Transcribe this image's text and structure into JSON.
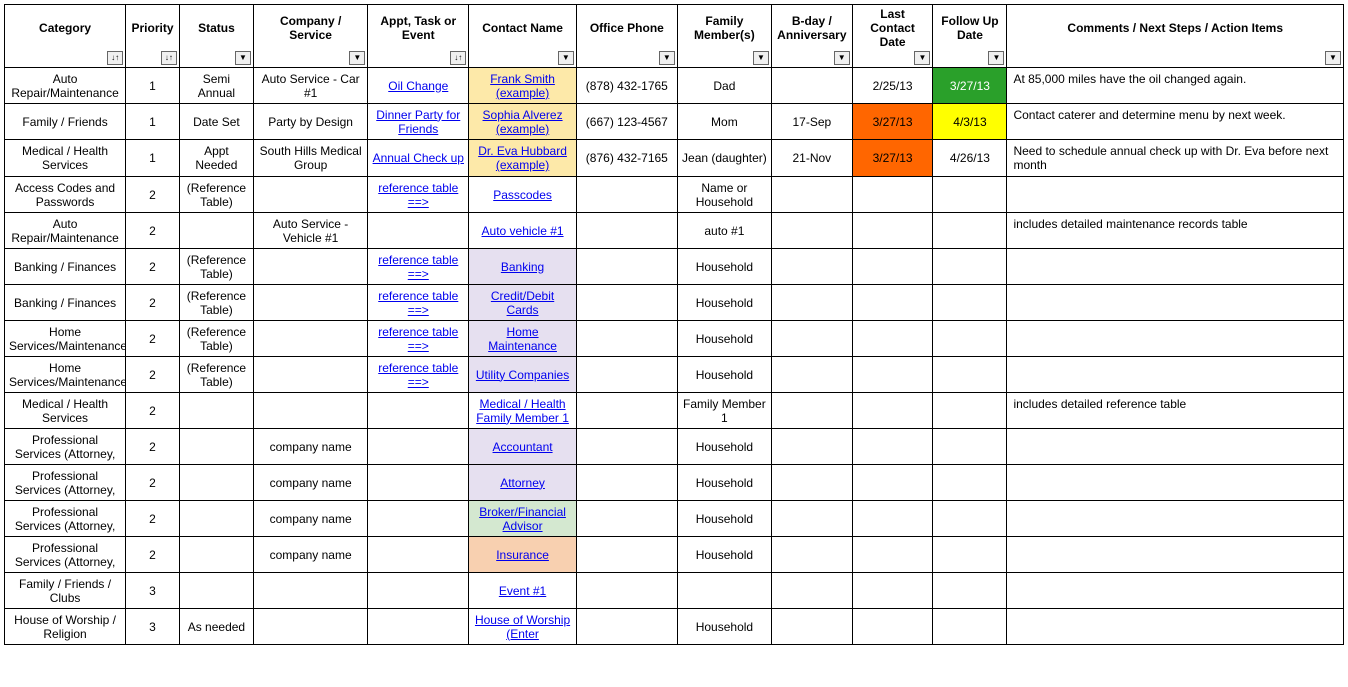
{
  "colors": {
    "cell_yellow_contact": "#fde9a9",
    "cell_purple_contact": "#e6e0f0",
    "cell_green_contact": "#d4e8d0",
    "cell_orange_contact": "#f8d0b0",
    "cell_green_followup": "#2aa02a",
    "cell_green_followup_text": "#ffffff",
    "cell_yellow_followup": "#ffff00",
    "cell_orange_date": "#ff6600",
    "link_color": "#0000ee"
  },
  "columns": [
    {
      "key": "category",
      "label": "Category",
      "filter": "sort"
    },
    {
      "key": "priority",
      "label": "Priority",
      "filter": "sort"
    },
    {
      "key": "status",
      "label": "Status",
      "filter": "filter"
    },
    {
      "key": "company",
      "label": "Company / Service",
      "filter": "filter"
    },
    {
      "key": "appt",
      "label": "Appt, Task or Event",
      "filter": "sort"
    },
    {
      "key": "contact",
      "label": "Contact Name",
      "filter": "filter"
    },
    {
      "key": "phone",
      "label": "Office Phone",
      "filter": "filter"
    },
    {
      "key": "family",
      "label": "Family Member(s)",
      "filter": "filter"
    },
    {
      "key": "bday",
      "label": "B-day / Anniversary",
      "filter": "filter"
    },
    {
      "key": "lastcontact",
      "label": "Last Contact Date",
      "filter": "filter"
    },
    {
      "key": "followup",
      "label": "Follow Up Date",
      "filter": "filter"
    },
    {
      "key": "comments",
      "label": "Comments / Next Steps / Action Items",
      "filter": "filter"
    }
  ],
  "rows": [
    {
      "category": "Auto Repair/Maintenance",
      "priority": "1",
      "status": "Semi Annual",
      "company": "Auto Service - Car #1",
      "appt": {
        "text": "Oil Change",
        "link": true
      },
      "contact": {
        "text": "Frank Smith (example)",
        "link": true,
        "bg": "cell_yellow_contact"
      },
      "phone": "(878) 432-1765",
      "family": "Dad",
      "bday": "",
      "lastcontact": {
        "text": "2/25/13"
      },
      "followup": {
        "text": "3/27/13",
        "bg": "cell_green_followup",
        "fg": "cell_green_followup_text"
      },
      "comments": "At 85,000 miles have the oil changed again."
    },
    {
      "category": "Family / Friends",
      "priority": "1",
      "status": "Date Set",
      "company": "Party by Design",
      "appt": {
        "text": "Dinner Party for Friends",
        "link": true
      },
      "contact": {
        "text": "Sophia Alverez (example)",
        "link": true,
        "bg": "cell_yellow_contact"
      },
      "phone": "(667) 123-4567",
      "family": "Mom",
      "bday": "17-Sep",
      "lastcontact": {
        "text": "3/27/13",
        "bg": "cell_orange_date"
      },
      "followup": {
        "text": "4/3/13",
        "bg": "cell_yellow_followup"
      },
      "comments": "Contact caterer and determine menu by next week."
    },
    {
      "category": "Medical / Health Services",
      "priority": "1",
      "status": "Appt Needed",
      "company": "South Hills Medical Group",
      "appt": {
        "text": "Annual Check up",
        "link": true
      },
      "contact": {
        "text": "Dr. Eva Hubbard (example)",
        "link": true,
        "bg": "cell_yellow_contact"
      },
      "phone": "(876) 432-7165",
      "family": "Jean (daughter)",
      "bday": "21-Nov",
      "lastcontact": {
        "text": "3/27/13",
        "bg": "cell_orange_date"
      },
      "followup": {
        "text": "4/26/13"
      },
      "comments": "Need to schedule annual check up with Dr. Eva before next month"
    },
    {
      "category": "Access Codes and Passwords",
      "priority": "2",
      "status": "(Reference Table)",
      "company": "",
      "appt": {
        "text": "reference table ==>",
        "link": true
      },
      "contact": {
        "text": "Passcodes",
        "link": true
      },
      "phone": "",
      "family": "Name or Household",
      "bday": "",
      "lastcontact": {
        "text": ""
      },
      "followup": {
        "text": ""
      },
      "comments": ""
    },
    {
      "category": "Auto Repair/Maintenance",
      "priority": "2",
      "status": "",
      "company": "Auto Service - Vehicle #1",
      "appt": {
        "text": ""
      },
      "contact": {
        "text": "Auto vehicle #1",
        "link": true
      },
      "phone": "",
      "family": "auto #1",
      "bday": "",
      "lastcontact": {
        "text": ""
      },
      "followup": {
        "text": ""
      },
      "comments": "includes detailed maintenance records table"
    },
    {
      "category": "Banking / Finances",
      "priority": "2",
      "status": "(Reference Table)",
      "company": "",
      "appt": {
        "text": "reference table ==>",
        "link": true
      },
      "contact": {
        "text": "Banking",
        "link": true,
        "bg": "cell_purple_contact"
      },
      "phone": "",
      "family": "Household",
      "bday": "",
      "lastcontact": {
        "text": ""
      },
      "followup": {
        "text": ""
      },
      "comments": ""
    },
    {
      "category": "Banking / Finances",
      "priority": "2",
      "status": "(Reference Table)",
      "company": "",
      "appt": {
        "text": "reference table ==>",
        "link": true
      },
      "contact": {
        "text": "Credit/Debit Cards",
        "link": true,
        "bg": "cell_purple_contact"
      },
      "phone": "",
      "family": "Household",
      "bday": "",
      "lastcontact": {
        "text": ""
      },
      "followup": {
        "text": ""
      },
      "comments": ""
    },
    {
      "category": "Home Services/Maintenance",
      "priority": "2",
      "status": "(Reference Table)",
      "company": "",
      "appt": {
        "text": "reference table ==>",
        "link": true
      },
      "contact": {
        "text": "Home Maintenance",
        "link": true,
        "bg": "cell_purple_contact"
      },
      "phone": "",
      "family": "Household",
      "bday": "",
      "lastcontact": {
        "text": ""
      },
      "followup": {
        "text": ""
      },
      "comments": ""
    },
    {
      "category": "Home Services/Maintenance",
      "priority": "2",
      "status": "(Reference Table)",
      "company": "",
      "appt": {
        "text": "reference table ==>",
        "link": true
      },
      "contact": {
        "text": "Utility Companies",
        "link": true,
        "bg": "cell_purple_contact"
      },
      "phone": "",
      "family": "Household",
      "bday": "",
      "lastcontact": {
        "text": ""
      },
      "followup": {
        "text": ""
      },
      "comments": ""
    },
    {
      "category": "Medical / Health Services",
      "priority": "2",
      "status": "",
      "company": "",
      "appt": {
        "text": ""
      },
      "contact": {
        "text": "Medical / Health Family Member 1",
        "link": true
      },
      "phone": "",
      "family": "Family Member 1",
      "bday": "",
      "lastcontact": {
        "text": ""
      },
      "followup": {
        "text": ""
      },
      "comments": "includes detailed reference table"
    },
    {
      "category": "Professional Services (Attorney,",
      "priority": "2",
      "status": "",
      "company": "company name",
      "appt": {
        "text": ""
      },
      "contact": {
        "text": "Accountant",
        "link": true,
        "bg": "cell_purple_contact"
      },
      "phone": "",
      "family": "Household",
      "bday": "",
      "lastcontact": {
        "text": ""
      },
      "followup": {
        "text": ""
      },
      "comments": ""
    },
    {
      "category": "Professional Services (Attorney,",
      "priority": "2",
      "status": "",
      "company": "company name",
      "appt": {
        "text": ""
      },
      "contact": {
        "text": "Attorney",
        "link": true,
        "bg": "cell_purple_contact"
      },
      "phone": "",
      "family": "Household",
      "bday": "",
      "lastcontact": {
        "text": ""
      },
      "followup": {
        "text": ""
      },
      "comments": ""
    },
    {
      "category": "Professional Services (Attorney,",
      "priority": "2",
      "status": "",
      "company": "company name",
      "appt": {
        "text": ""
      },
      "contact": {
        "text": "Broker/Financial Advisor",
        "link": true,
        "bg": "cell_green_contact"
      },
      "phone": "",
      "family": "Household",
      "bday": "",
      "lastcontact": {
        "text": ""
      },
      "followup": {
        "text": ""
      },
      "comments": ""
    },
    {
      "category": "Professional Services (Attorney,",
      "priority": "2",
      "status": "",
      "company": "company name",
      "appt": {
        "text": ""
      },
      "contact": {
        "text": "Insurance",
        "link": true,
        "bg": "cell_orange_contact"
      },
      "phone": "",
      "family": "Household",
      "bday": "",
      "lastcontact": {
        "text": ""
      },
      "followup": {
        "text": ""
      },
      "comments": ""
    },
    {
      "category": "Family / Friends / Clubs",
      "priority": "3",
      "status": "",
      "company": "",
      "appt": {
        "text": ""
      },
      "contact": {
        "text": "Event #1",
        "link": true
      },
      "phone": "",
      "family": "",
      "bday": "",
      "lastcontact": {
        "text": ""
      },
      "followup": {
        "text": ""
      },
      "comments": ""
    },
    {
      "category": "House of Worship / Religion",
      "priority": "3",
      "status": "As needed",
      "company": "",
      "appt": {
        "text": ""
      },
      "contact": {
        "text": "House of Worship (Enter",
        "link": true
      },
      "phone": "",
      "family": "Household",
      "bday": "",
      "lastcontact": {
        "text": ""
      },
      "followup": {
        "text": ""
      },
      "comments": ""
    }
  ]
}
